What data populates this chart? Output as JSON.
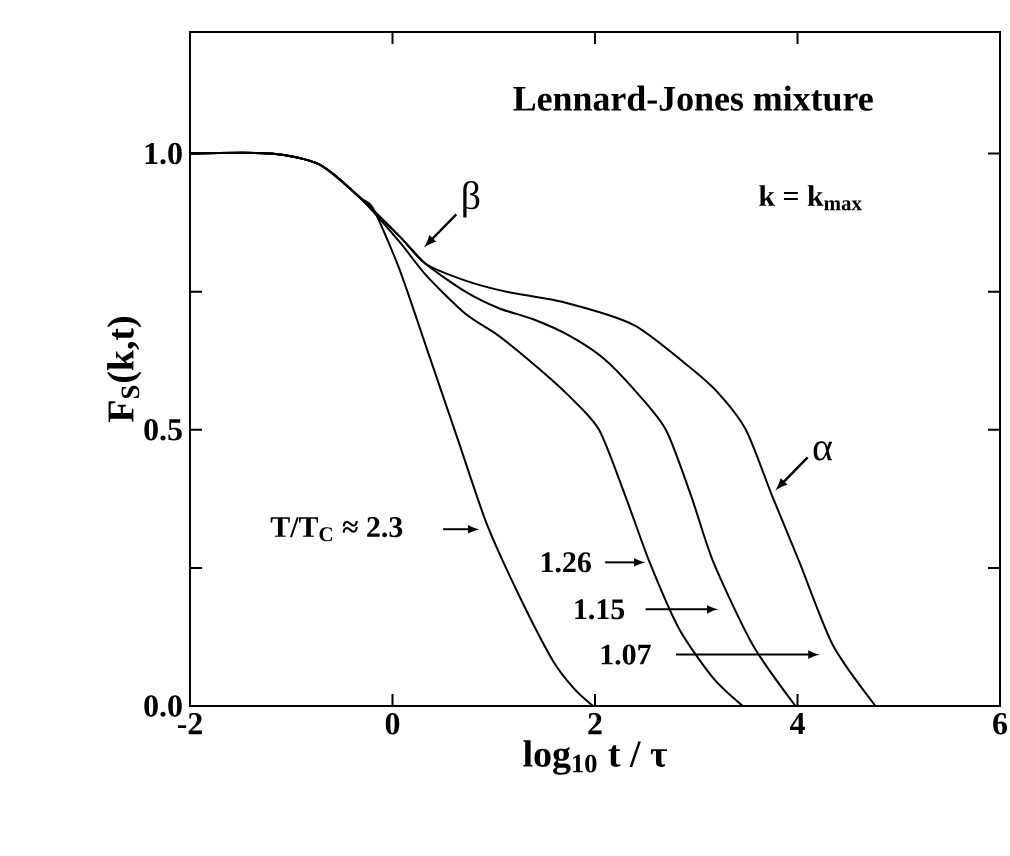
{
  "chart_data": {
    "type": "line",
    "title": "Lennard-Jones mixture",
    "xlabel": "log$_{10}$ t / τ",
    "ylabel": "F$_{S}$(k,t)",
    "annotations": [
      "k = k$_{max}$",
      {
        "text": "β",
        "x": 0.31,
        "y": 0.83
      },
      {
        "text": "α",
        "x": 3.78,
        "y": 0.39
      }
    ],
    "xlim": [
      -2,
      6
    ],
    "ylim": [
      0,
      1.22
    ],
    "xticks": [
      -2,
      0,
      2,
      4,
      6
    ],
    "yticks": [
      {
        "value": 0,
        "label": "0.0"
      },
      {
        "value": 0.25,
        "label": null
      },
      {
        "value": 0.5,
        "label": "0.5"
      },
      {
        "value": 0.75,
        "label": null
      },
      {
        "value": 1,
        "label": "1.0"
      }
    ],
    "marker": "none",
    "line_style": "solid",
    "legend": "bottom",
    "series": [
      {
        "name": "T/T$_{C}$ ≈ 2.3",
        "color": "#000000",
        "x": [
          -2,
          -1.2,
          -0.72,
          -0.32,
          -0.19,
          0.07,
          0.37,
          0.65,
          0.93,
          1.25,
          1.59,
          1.8,
          1.98
        ],
        "values": [
          1,
          1,
          0.98,
          0.92,
          0.9,
          0.79,
          0.63,
          0.48,
          0.33,
          0.2,
          0.08,
          0.03,
          0
        ]
      },
      {
        "name": "1.26",
        "color": "#000000",
        "x": [
          -2,
          -1.2,
          -0.72,
          -0.32,
          0.07,
          0.33,
          0.72,
          1.05,
          1.45,
          1.75,
          2.04,
          2.3,
          2.54,
          2.83,
          3.17,
          3.46
        ],
        "values": [
          1,
          1,
          0.98,
          0.92,
          0.84,
          0.78,
          0.71,
          0.67,
          0.61,
          0.56,
          0.5,
          0.38,
          0.26,
          0.14,
          0.05,
          0
        ]
      },
      {
        "name": "1.15",
        "color": "#000000",
        "x": [
          -2,
          -1.2,
          -0.72,
          -0.32,
          0.07,
          0.33,
          0.72,
          1.05,
          1.39,
          1.75,
          2.08,
          2.4,
          2.7,
          2.95,
          3.17,
          3.56,
          3.98
        ],
        "values": [
          1,
          1,
          0.98,
          0.92,
          0.85,
          0.8,
          0.75,
          0.72,
          0.7,
          0.67,
          0.63,
          0.57,
          0.5,
          0.38,
          0.26,
          0.11,
          0
        ]
      },
      {
        "name": "1.07",
        "color": "#000000",
        "x": [
          -2,
          -1.2,
          -0.72,
          -0.32,
          0.07,
          0.33,
          0.72,
          1.12,
          1.71,
          2.38,
          2.89,
          3.2,
          3.49,
          3.75,
          4.02,
          4.35,
          4.77
        ],
        "values": [
          1,
          1,
          0.98,
          0.92,
          0.85,
          0.8,
          0.77,
          0.75,
          0.73,
          0.69,
          0.62,
          0.57,
          0.5,
          0.38,
          0.26,
          0.11,
          0
        ]
      }
    ]
  }
}
